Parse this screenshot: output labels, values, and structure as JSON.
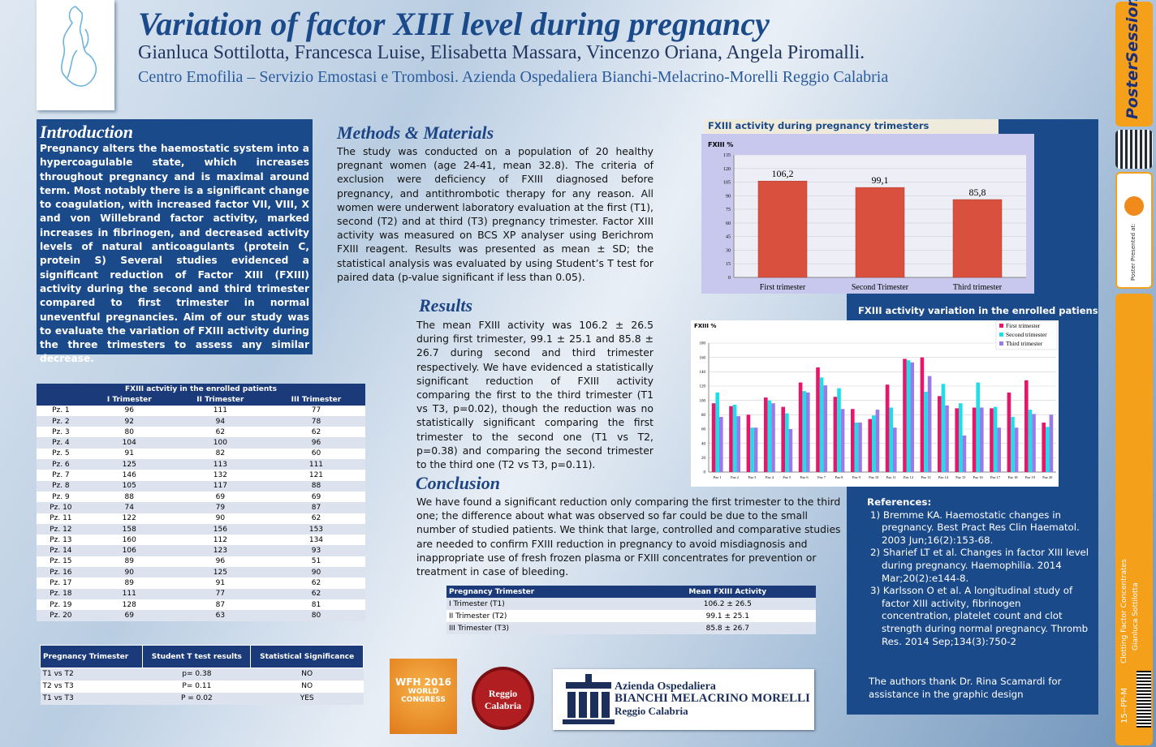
{
  "header": {
    "title": "Variation of factor XIII level during pregnancy",
    "authors": "Gianluca Sottilotta, Francesca Luise, Elisabetta Massara, Vincenzo Oriana, Angela Piromalli.",
    "affiliation": "Centro Emofilia – Servizio Emostasi e Trombosi. Azienda Ospedaliera Bianchi-Melacrino-Morelli Reggio Calabria"
  },
  "introduction": {
    "heading": "Introduction",
    "text": "Pregnancy alters the haemostatic system into a hypercoagulable state, which increases throughout pregnancy and is maximal around term. Most notably there is a significant change to coagulation, with increased factor VII, VIII, X and von Willebrand factor activity, marked increases in fibrinogen, and decreased activity levels of natural anticoagulants (protein C, protein S) Several studies evidenced a significant reduction of Factor XIII (FXIII) activity during the second and third trimester compared to first trimester in normal uneventful pregnancies. Aim of our study was to evaluate the variation of FXIII activity during the three trimesters to assess any similar decrease."
  },
  "methods": {
    "heading": "Methods & Materials",
    "text": "The study was conducted on a population of 20 healthy pregnant women (age 24-41, mean 32.8). The criteria of exclusion were deficiency of FXIII diagnosed before pregnancy, and antithrombotic therapy for any reason. All women were underwent laboratory evaluation at the first (T1), second (T2) and at third (T3) pregnancy trimester. Factor XIII activity was measured on BCS XP analyser using Berichrom FXIII reagent. Results was presented as mean ± SD; the statistical analysis was evaluated by using Student’s T test for paired data (p-value significant if less than 0.05)."
  },
  "results": {
    "heading": "Results",
    "text": "The mean FXIII activity was 106.2 ± 26.5 during first trimester, 99.1 ± 25.1 and 85.8 ± 26.7 during second and third trimester respectively. We have evidenced a statistically significant reduction of FXIII activity comparing the first to the third trimester (T1 vs T3, p=0.02), though the reduction was no statistically significant comparing the first trimester to the second one (T1 vs T2, p=0.38) and comparing the second trimester to the third one (T2 vs T3, p=0.11)."
  },
  "conclusion": {
    "heading": "Conclusion",
    "text": "We have found a significant reduction only comparing the first trimester to the third one; the difference about what was observed so far could be due to the small number of studied patients. We think that large, controlled and comparative studies are needed to confirm FXIII reduction in pregnancy to avoid misdiagnosis and inappropriate use of fresh frozen plasma or FXIII concentrates for prevention or treatment in case of bleeding."
  },
  "chart_data": [
    {
      "type": "bar",
      "title": "FXIII activity during pregnancy trimesters",
      "y_label": "FXIII %",
      "categories": [
        "First trimester",
        "Second Trimester",
        "Third trimester"
      ],
      "values": [
        106.2,
        99.1,
        85.8
      ],
      "value_labels": [
        "106,2",
        "99,1",
        "85,8"
      ],
      "color": "#d9503f",
      "ylim": [
        0,
        135
      ],
      "yticks": [
        0,
        15,
        30,
        45,
        60,
        75,
        90,
        105,
        120,
        135
      ],
      "grid": true
    },
    {
      "type": "grouped_bar",
      "title": "FXIII activity variation in the enrolled patiens",
      "y_label": "FXIII %",
      "categories": [
        "Paz 1",
        "Paz 2",
        "Paz 3",
        "Paz 4",
        "Paz 5",
        "Paz 6",
        "Paz 7",
        "Paz 8",
        "Paz 9",
        "Paz 10",
        "Paz 11",
        "Paz 12",
        "Paz 13",
        "Paz 14",
        "Paz 15",
        "Paz 16",
        "Paz 17",
        "Paz 18",
        "Paz 19",
        "Paz 20"
      ],
      "series": [
        {
          "name": "First trimester",
          "color": "#e8156a",
          "values": [
            96,
            92,
            80,
            104,
            91,
            125,
            146,
            105,
            88,
            74,
            122,
            158,
            160,
            106,
            89,
            90,
            89,
            111,
            128,
            69
          ]
        },
        {
          "name": "Second trimester",
          "color": "#22dde8",
          "values": [
            111,
            94,
            62,
            100,
            82,
            113,
            132,
            117,
            69,
            79,
            90,
            156,
            112,
            123,
            96,
            125,
            91,
            77,
            87,
            63
          ]
        },
        {
          "name": "Third trimester",
          "color": "#9a7ae8",
          "values": [
            77,
            78,
            62,
            96,
            60,
            111,
            121,
            88,
            69,
            87,
            62,
            153,
            134,
            93,
            51,
            90,
            62,
            62,
            81,
            80
          ]
        }
      ],
      "ylim": [
        0,
        180
      ],
      "yticks": [
        0,
        20,
        40,
        60,
        80,
        100,
        120,
        140,
        160,
        180
      ],
      "grid": true,
      "legend": "top-right"
    }
  ],
  "patients_table": {
    "title": "FXIII actvitiy in the enrolled patients",
    "header": [
      "I Trimester",
      "II Trimester",
      "III Trimester"
    ],
    "rows": [
      [
        "Pz. 1",
        96,
        111,
        77
      ],
      [
        "Pz. 2",
        92,
        94,
        78
      ],
      [
        "Pz. 3",
        80,
        62,
        62
      ],
      [
        "Pz. 4",
        104,
        100,
        96
      ],
      [
        "Pz. 5",
        91,
        82,
        60
      ],
      [
        "Pz. 6",
        125,
        113,
        111
      ],
      [
        "Pz. 7",
        146,
        132,
        121
      ],
      [
        "Pz. 8",
        105,
        117,
        88
      ],
      [
        "Pz. 9",
        88,
        69,
        69
      ],
      [
        "Pz. 10",
        74,
        79,
        87
      ],
      [
        "Pz. 11",
        122,
        90,
        62
      ],
      [
        "Pz. 12",
        158,
        156,
        153
      ],
      [
        "Pz. 13",
        160,
        112,
        134
      ],
      [
        "Pz. 14",
        106,
        123,
        93
      ],
      [
        "Pz. 15",
        89,
        96,
        51
      ],
      [
        "Pz. 16",
        90,
        125,
        90
      ],
      [
        "Pz. 17",
        89,
        91,
        62
      ],
      [
        "Pz. 18",
        111,
        77,
        62
      ],
      [
        "Pz. 19",
        128,
        87,
        81
      ],
      [
        "Pz. 20",
        69,
        63,
        80
      ]
    ]
  },
  "stats_table": {
    "header": [
      "Pregnancy Trimester",
      "Student T test results",
      "Statistical Significance"
    ],
    "rows": [
      [
        "T1 vs T2",
        "p= 0.38",
        "NO"
      ],
      [
        "T2 vs T3",
        "P= 0.11",
        "NO"
      ],
      [
        "T1 vs T3",
        "P = 0.02",
        "YES"
      ]
    ]
  },
  "mean_table": {
    "header": [
      "Pregnancy Trimester",
      "Mean FXIII Activity"
    ],
    "rows": [
      [
        "I Trimester (T1)",
        "106.2 ± 26.5"
      ],
      [
        "II Trimester (T2)",
        "99.1 ± 25.1"
      ],
      [
        "III Trimester (T3)",
        "85.8 ± 26.7"
      ]
    ]
  },
  "references": {
    "heading": "References:",
    "items": [
      "1) Bremme KA. Haemostatic changes in pregnancy. Best Pract Res Clin Haematol. 2003 Jun;16(2):153-68.",
      "2) Sharief LT et al. Changes in factor XIII level during pregnancy. Haemophilia. 2014 Mar;20(2):e144-8.",
      "3) Karlsson O et al. A longitudinal study of factor XIII activity, fibrinogen concentration, platelet count and clot strength during normal pregnancy. Thromb Res. 2014 Sep;134(3):750-2"
    ]
  },
  "acknowledgment": "The authors thank Dr. Rina Scamardi for assistance in the graphic design",
  "logos": {
    "wfh": [
      "WFH 2016",
      "WORLD",
      "CONGRESS"
    ],
    "reggio": [
      "Reggio",
      "Calabria"
    ],
    "hospital": [
      "Azienda Ospedaliera",
      "BIANCHI MELACRINO MORELLI",
      "Reggio Calabria"
    ]
  },
  "sidebar": {
    "brand": "PosterSessionOnline",
    "presented": "Poster Presented at:",
    "topic": "Clotting Factor Concentrates",
    "author": "Gianluca Sottilotta",
    "code": "15--PP-M"
  }
}
